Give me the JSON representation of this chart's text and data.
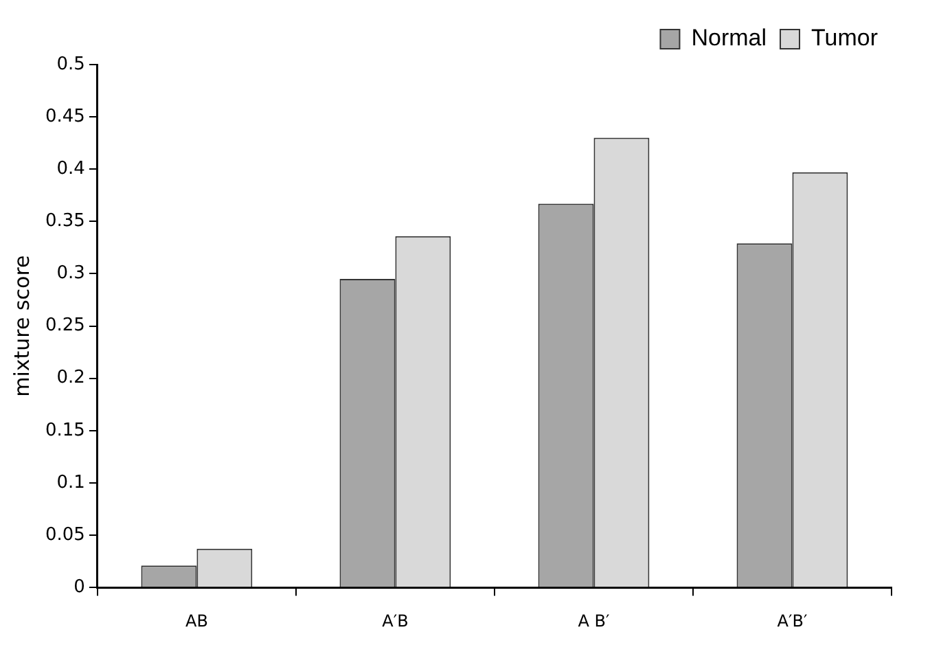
{
  "chart_data": {
    "type": "bar",
    "ylabel": "mixture score",
    "categories": [
      "AB",
      "A′B",
      "A B′",
      "A′B′"
    ],
    "series": [
      {
        "name": "Normal",
        "color": "#a6a6a6",
        "values": [
          0.021,
          0.295,
          0.367,
          0.329
        ]
      },
      {
        "name": "Tumor",
        "color": "#d9d9d9",
        "values": [
          0.037,
          0.336,
          0.43,
          0.397
        ]
      }
    ],
    "ylim": [
      0,
      0.5
    ],
    "yticks": [
      0,
      0.05,
      0.1,
      0.15,
      0.2,
      0.25,
      0.3,
      0.35,
      0.4,
      0.45,
      0.5
    ],
    "grid": false,
    "legend": "top right"
  }
}
